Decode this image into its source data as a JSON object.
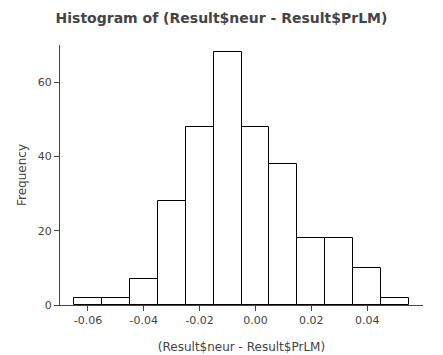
{
  "chart_data": {
    "type": "histogram",
    "title": "Histogram of (Result$neur - Result$PrLM)",
    "xlabel": "(Result$neur - Result$PrLM)",
    "ylabel": "Frequency",
    "bins": [
      -0.065,
      -0.055,
      -0.045,
      -0.035,
      -0.025,
      -0.015,
      -0.005,
      0.005,
      0.015,
      0.025,
      0.035,
      0.045,
      0.055
    ],
    "values": [
      2,
      2,
      7,
      28,
      48,
      68,
      48,
      38,
      18,
      18,
      10,
      2
    ],
    "color": "#ffffff",
    "xlim": [
      -0.07,
      0.06
    ],
    "ylim": [
      0,
      70
    ],
    "xticks": [
      -0.06,
      -0.04,
      -0.02,
      {
        "value": 0,
        "label": "0.00"
      },
      0.02,
      0.04
    ],
    "yticks": [
      0,
      20,
      40,
      60
    ],
    "grid": false
  }
}
